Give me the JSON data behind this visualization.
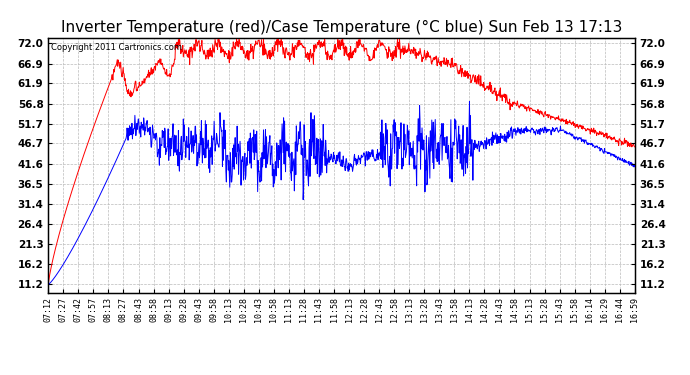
{
  "title": "Inverter Temperature (red)/Case Temperature (°C blue) Sun Feb 13 17:13",
  "copyright": "Copyright 2011 Cartronics.com",
  "yticks": [
    11.2,
    16.2,
    21.3,
    26.4,
    31.4,
    36.5,
    41.6,
    46.7,
    51.7,
    56.8,
    61.9,
    66.9,
    72.0
  ],
  "ylim": [
    9.0,
    73.5
  ],
  "background_color": "#ffffff",
  "grid_color": "#bbbbbb",
  "red_color": "#ff0000",
  "blue_color": "#0000ff",
  "title_fontsize": 11,
  "xlabel_fontsize": 6,
  "ylabel_fontsize": 7.5,
  "xtick_labels": [
    "07:12",
    "07:27",
    "07:42",
    "07:57",
    "08:13",
    "08:27",
    "08:43",
    "08:58",
    "09:13",
    "09:28",
    "09:43",
    "09:58",
    "10:13",
    "10:28",
    "10:43",
    "10:58",
    "11:13",
    "11:28",
    "11:43",
    "11:58",
    "12:13",
    "12:28",
    "12:43",
    "12:58",
    "13:13",
    "13:28",
    "13:43",
    "13:58",
    "14:13",
    "14:28",
    "14:43",
    "14:58",
    "15:13",
    "15:28",
    "15:43",
    "15:58",
    "16:14",
    "16:29",
    "16:44",
    "16:59"
  ]
}
